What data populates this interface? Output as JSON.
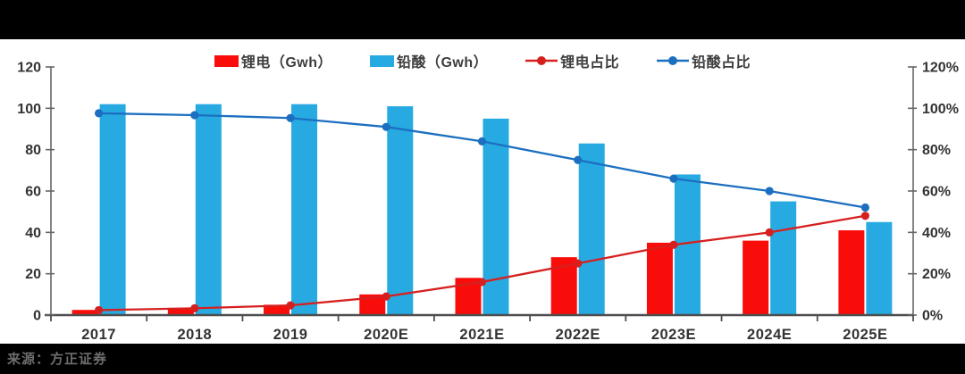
{
  "source": {
    "text": "来源：方正证券"
  },
  "chart_data": {
    "type": "combo",
    "title": "",
    "categories": [
      "2017",
      "2018",
      "2019",
      "2020E",
      "2021E",
      "2022E",
      "2023E",
      "2024E",
      "2025E"
    ],
    "series": [
      {
        "name": "锂电（Gwh）",
        "type": "bar",
        "axis": "left",
        "color": "#F90D0B",
        "values": [
          2.5,
          3.5,
          5,
          10,
          18,
          28,
          35,
          36,
          41
        ]
      },
      {
        "name": "铅酸（Gwh）",
        "type": "bar",
        "axis": "left",
        "color": "#27AAE1",
        "values": [
          102,
          102,
          102,
          101,
          95,
          83,
          68,
          55,
          45
        ]
      },
      {
        "name": "锂电占比",
        "type": "line",
        "axis": "right",
        "color": "#D6201F",
        "values": [
          2.4,
          3.3,
          4.7,
          9,
          16,
          25,
          34,
          40,
          48
        ]
      },
      {
        "name": "铅酸占比",
        "type": "line",
        "axis": "right",
        "color": "#1C6FC0",
        "values": [
          97.6,
          96.7,
          95.3,
          91,
          84,
          75,
          66,
          60,
          52
        ]
      }
    ],
    "left_axis": {
      "min": 0,
      "max": 120,
      "step": 20,
      "suffix": ""
    },
    "right_axis": {
      "min": 0,
      "max": 120,
      "step": 20,
      "suffix": "%"
    },
    "legend_position": "top",
    "grid": false,
    "axis_color": "#666666",
    "baseline_color": "#4D4D4D",
    "tick_label_color": "#333333"
  }
}
